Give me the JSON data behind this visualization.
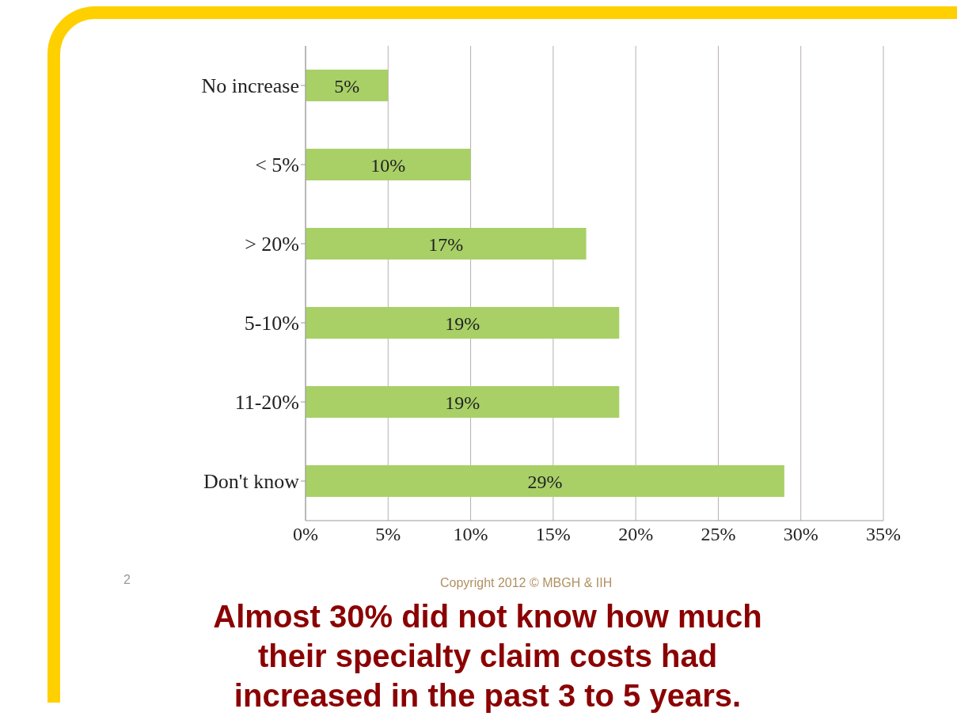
{
  "chart_data": {
    "type": "bar",
    "orientation": "horizontal",
    "categories": [
      "No increase",
      "< 5%",
      "> 20%",
      "5-10%",
      "11-20%",
      "Don't know"
    ],
    "values": [
      5,
      10,
      17,
      19,
      19,
      29
    ],
    "value_labels": [
      "5%",
      "10%",
      "17%",
      "19%",
      "19%",
      "29%"
    ],
    "color": "#a8d067",
    "xlim": [
      0,
      35
    ],
    "xticks": [
      {
        "value": 0,
        "label": "0%"
      },
      {
        "value": 5,
        "label": "5%"
      },
      {
        "value": 10,
        "label": "10%"
      },
      {
        "value": 15,
        "label": "15%"
      },
      {
        "value": 20,
        "label": "20%"
      },
      {
        "value": 25,
        "label": "25%"
      },
      {
        "value": 30,
        "label": "30%"
      },
      {
        "value": 35,
        "label": "35%"
      }
    ],
    "grid": "x",
    "legend": false,
    "annotations": [
      "2",
      "Copyright 2012 © MBGH & IIH",
      "Almost 30% did not know how much their specialty claim costs had increased in the past 3 to 5 years."
    ]
  }
}
